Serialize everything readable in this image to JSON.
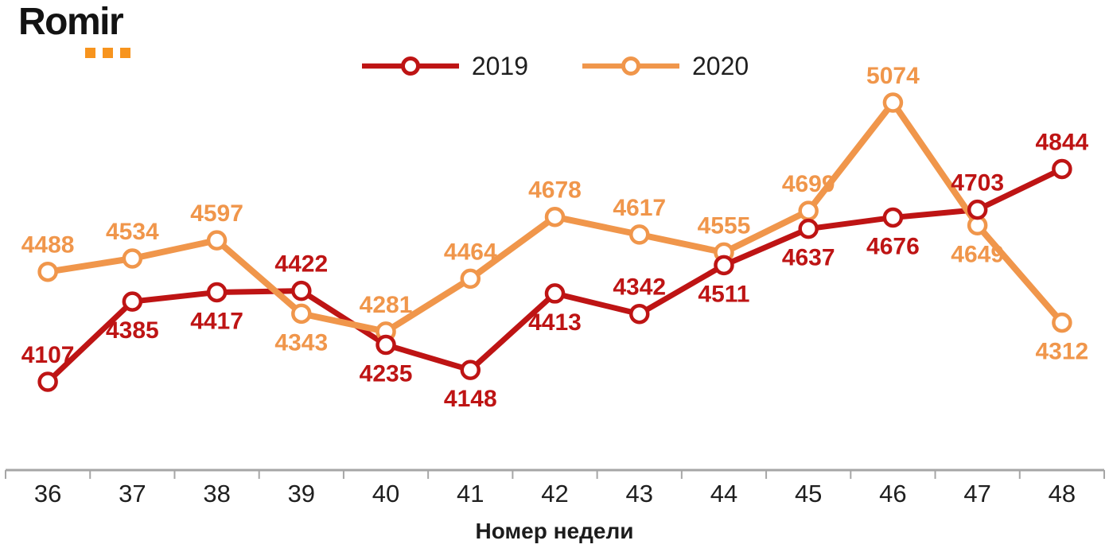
{
  "logo": {
    "text": "Romir",
    "accent_color": "#F7941E"
  },
  "chart_data": {
    "type": "line",
    "x": [
      36,
      37,
      38,
      39,
      40,
      41,
      42,
      43,
      44,
      45,
      46,
      47,
      48
    ],
    "xlabel": "Номер недели",
    "ylim": [
      4000,
      5150
    ],
    "grid": false,
    "legend_position": "top-center",
    "axis_color": "#A6A6A6",
    "marker_style": "open-circle",
    "data_labels": true,
    "series": [
      {
        "name": "2019",
        "color": "#BE1414",
        "values": [
          4107,
          4385,
          4417,
          4422,
          4235,
          4148,
          4413,
          4342,
          4511,
          4637,
          4676,
          4703,
          4844
        ],
        "label_positions": [
          "above",
          "below",
          "below",
          "above",
          "below",
          "below",
          "below",
          "above",
          "below",
          "below",
          "below",
          "above",
          "above"
        ]
      },
      {
        "name": "2020",
        "color": "#F0964B",
        "values": [
          4488,
          4534,
          4597,
          4343,
          4281,
          4464,
          4678,
          4617,
          4555,
          4699,
          5074,
          4649,
          4312
        ],
        "label_positions": [
          "above",
          "above",
          "above",
          "below",
          "above",
          "above",
          "above",
          "above",
          "above",
          "above",
          "above",
          "below",
          "below"
        ]
      }
    ]
  }
}
